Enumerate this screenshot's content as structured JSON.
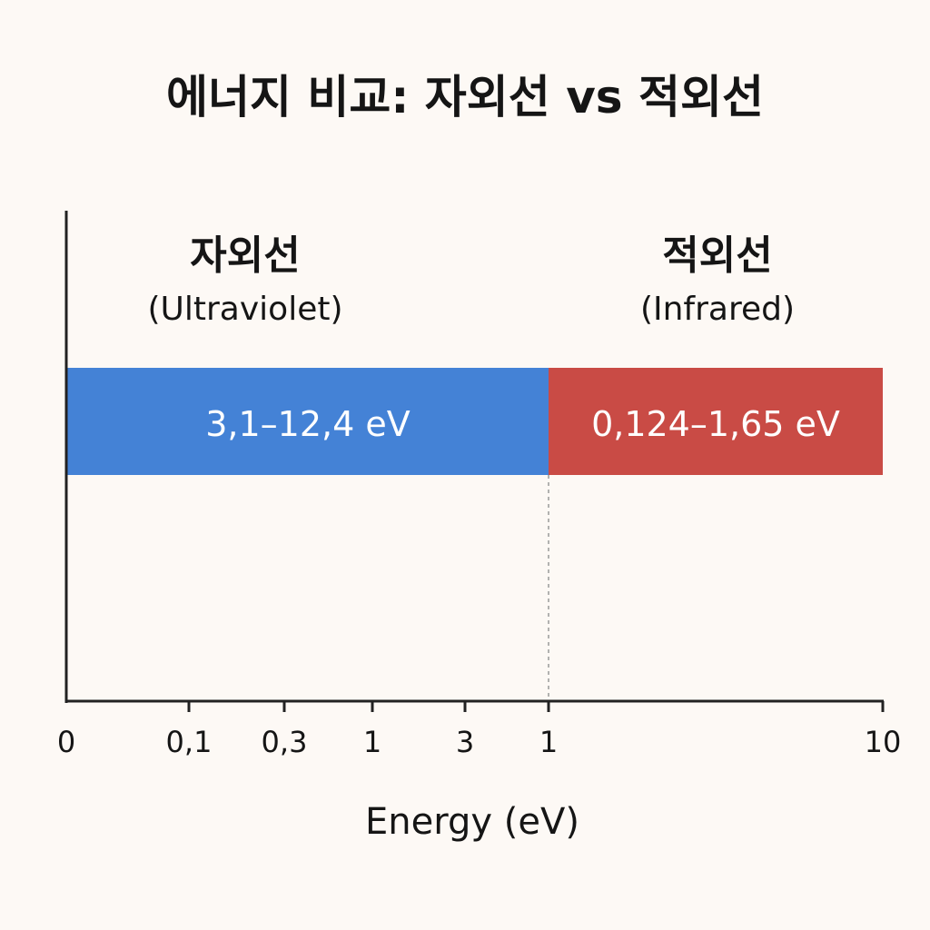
{
  "chart_data": {
    "type": "bar",
    "title": "에너지 비교: 자외선 vs 적외선",
    "xlabel": "Energy (eV)",
    "ylabel": "",
    "tick_labels": [
      "0",
      "0,1",
      "0,3",
      "1",
      "3",
      "1",
      "10"
    ],
    "grid": false,
    "legend": "none",
    "series": [
      {
        "category": "자외선",
        "category_en": "(Ultraviolet)",
        "range_label": "3,1–12,4 eV",
        "range_min": 3.1,
        "range_max": 12.4,
        "color": "#4482d6"
      },
      {
        "category": "적외선",
        "category_en": "(Infrared)",
        "range_label": "0,124–1,65 eV",
        "range_min": 0.124,
        "range_max": 1.65,
        "color": "#c94b45"
      }
    ],
    "divider_style": "dashed"
  }
}
